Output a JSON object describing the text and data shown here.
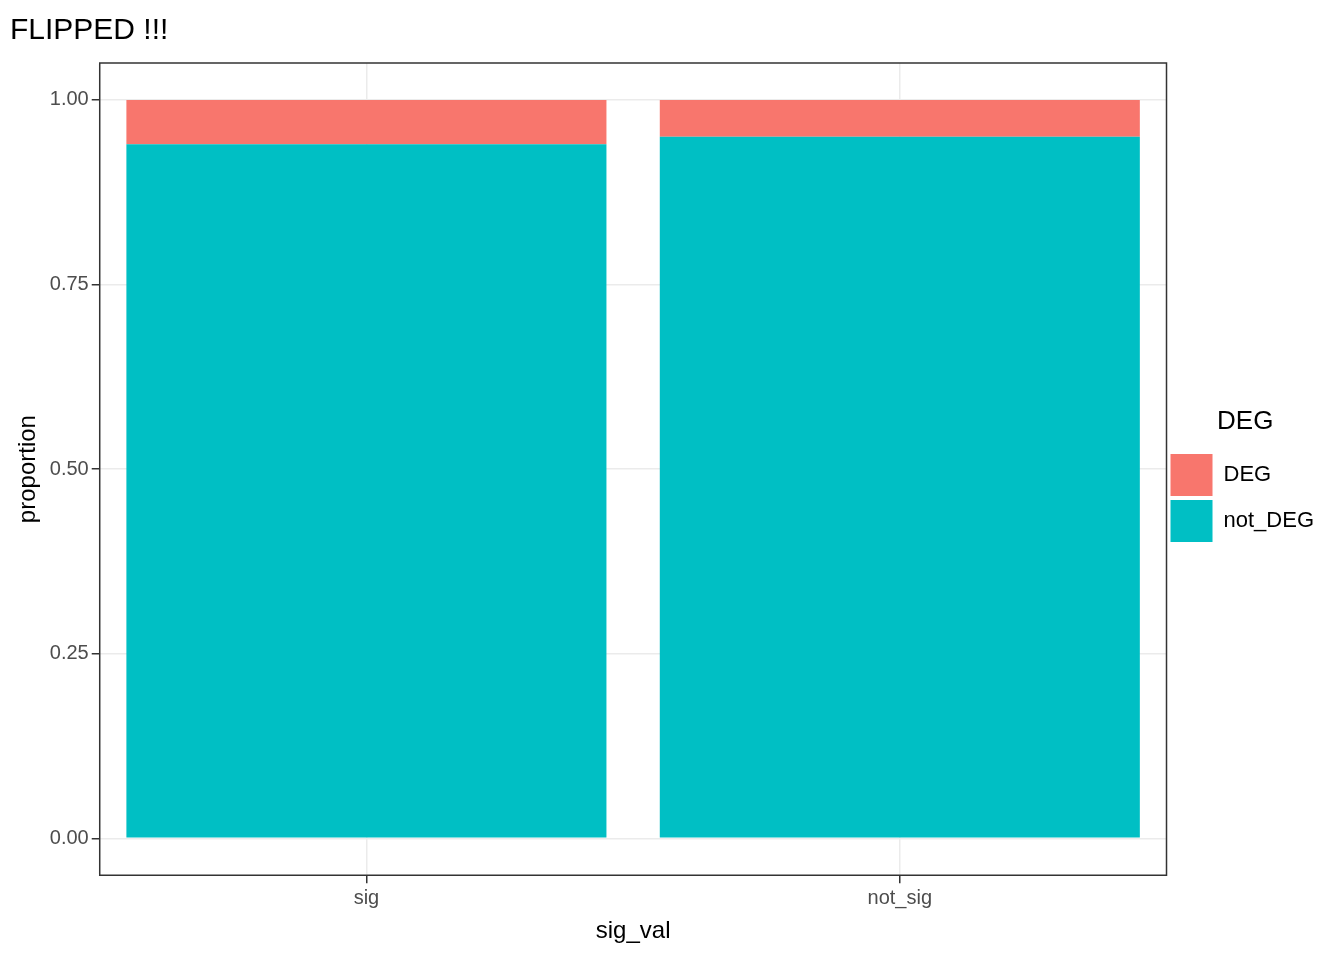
{
  "chart_data": {
    "type": "bar",
    "title": "FLIPPED !!!",
    "xlabel": "sig_val",
    "ylabel": "proportion",
    "legend_title": "DEG",
    "categories": [
      "sig",
      "not_sig"
    ],
    "series": [
      {
        "name": "not_DEG",
        "color": "#00bfc4",
        "values": [
          0.94,
          0.95
        ]
      },
      {
        "name": "DEG",
        "color": "#f8766d",
        "values": [
          0.06,
          0.05
        ]
      }
    ],
    "stacked": true,
    "ylim": [
      -0.05,
      1.05
    ],
    "yticks": [
      {
        "value": 0,
        "label": "0.00"
      },
      {
        "value": 0.25,
        "label": "0.25"
      },
      {
        "value": 0.5,
        "label": "0.50"
      },
      {
        "value": 0.75,
        "label": "0.75"
      },
      {
        "value": 1,
        "label": "1.00"
      }
    ],
    "grid": true,
    "legend": "right"
  }
}
